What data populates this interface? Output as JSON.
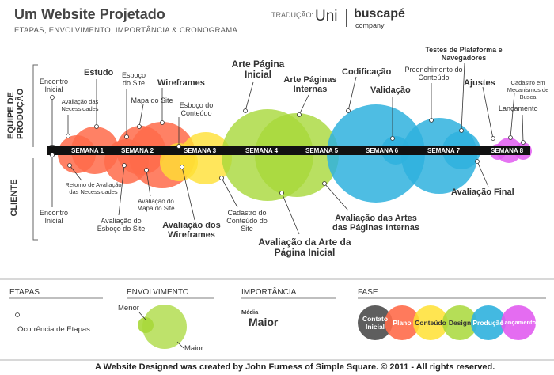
{
  "header": {
    "title": "Um Website Projetado",
    "subtitle": "ETAPAS, ENVOLVIMENTO, IMPORTÂNCIA & CRONOGRAMA",
    "translation_label": "TRADUÇÃO:",
    "brand_uni": "Uni",
    "brand_buscape": "buscapé",
    "brand_company": "company"
  },
  "sides": {
    "team": "EQUIPE DE PRODUÇÃO",
    "client": "CLIENTE"
  },
  "weeks": [
    "SEMANA 1",
    "SEMANA 2",
    "SEMANA 3",
    "SEMANA 4",
    "SEMANA 5",
    "SEMANA 6",
    "SEMANA 7",
    "SEMANA 8"
  ],
  "top_labels": {
    "encontro_inicial": "Encontro Inicial",
    "avaliacao_necessidades": "Avaliação das Necessidades",
    "estudo": "Estudo",
    "esboco_site": "Esboço do Site",
    "mapa_site": "Mapa do Site",
    "wireframes": "Wireframes",
    "esboco_conteudo": "Esboço do Conteúdo",
    "arte_pagina_inicial": "Arte Página Inicial",
    "arte_paginas_internas": "Arte Páginas Internas",
    "codificacao": "Codificação",
    "validacao": "Validação",
    "preenchimento_conteudo": "Preenchimento do Conteúdo",
    "testes_plataforma": "Testes de Plataforma e Navegadores",
    "ajustes": "Ajustes",
    "cadastro_mecanismos": "Cadastro em Mecanismos de Busca",
    "lancamento": "Lançamento"
  },
  "bottom_labels": {
    "encontro_inicial": "Encontro Inicial",
    "retorno_avaliacao": "Retorno de Avaliação das Necessidades",
    "avaliacao_esboco": "Avaliação do Esboço do Site",
    "avaliacao_mapa": "Avaliação do Mapa do Site",
    "avaliacao_wireframes": "Avaliação dos Wireframes",
    "cadastro_conteudo": "Cadastro do Conteúdo do Site",
    "avaliacao_arte_inicial": "Avaliação da Arte da Página Inicial",
    "avaliacao_artes_internas": "Avaliação das Artes das Páginas Internas",
    "avaliacao_final": "Avaliação Final"
  },
  "legend": {
    "etapas_title": "ETAPAS",
    "etapas_item": "Ocorrência de Etapas",
    "envolvimento_title": "ENVOLVIMENTO",
    "menor": "Menor",
    "maior": "Maior",
    "importancia_title": "IMPORTÂNCIA",
    "media": "Média",
    "importancia_maior": "Maior",
    "fase_title": "FASE",
    "phases": [
      "Contato Inicial",
      "Plano",
      "Conteúdo",
      "Design",
      "Produção",
      "Lançamento"
    ]
  },
  "colors": {
    "contato": "#555555",
    "plano": "#ff6b4a",
    "conteudo": "#ffe033",
    "design": "#a8d83a",
    "producao": "#2fb1de",
    "lancamento": "#e15cf0",
    "timeline": "#111111"
  },
  "credit": "A Website Designed was created by John Furness of Simple Square. © 2011 - All rights reserved."
}
